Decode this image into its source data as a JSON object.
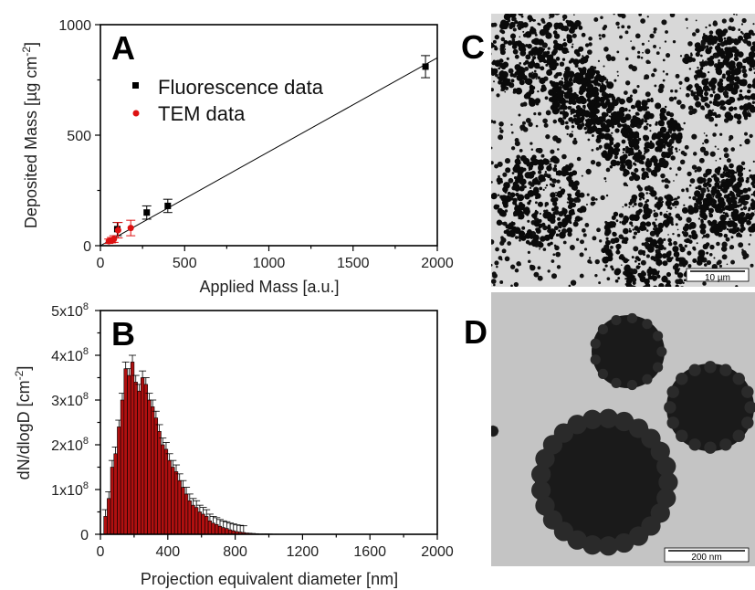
{
  "chart_data": [
    {
      "type": "scatter",
      "panel": "A",
      "xlabel": "Applied Mass [a.u.]",
      "ylabel": "Deposited Mass [µg cm",
      "ylabel_sup": "-2",
      "ylabel_end": "]",
      "xlim": [
        0,
        2000
      ],
      "ylim": [
        0,
        1000
      ],
      "xticks": [
        "0",
        "500",
        "1000",
        "1500",
        "2000"
      ],
      "yticks": [
        "0",
        "500",
        "1000"
      ],
      "legend": [
        "Fluorescence data",
        "TEM data"
      ],
      "colors": {
        "fluorescence": "#000000",
        "tem": "#dd1111"
      },
      "series": [
        {
          "name": "Fluorescence data",
          "marker": "square",
          "points": [
            {
              "x": 100,
              "y": 75,
              "err": 30
            },
            {
              "x": 275,
              "y": 150,
              "err": 30
            },
            {
              "x": 400,
              "y": 180,
              "err": 30
            },
            {
              "x": 1930,
              "y": 810,
              "err": 50
            }
          ]
        },
        {
          "name": "TEM data",
          "marker": "circle",
          "points": [
            {
              "x": 50,
              "y": 20,
              "err": 10
            },
            {
              "x": 65,
              "y": 25,
              "err": 12
            },
            {
              "x": 80,
              "y": 30,
              "err": 15
            },
            {
              "x": 105,
              "y": 70,
              "err": 35
            },
            {
              "x": 180,
              "y": 80,
              "err": 35
            }
          ]
        }
      ],
      "fit_line": {
        "x": [
          0,
          2000
        ],
        "y": [
          0,
          850
        ]
      }
    },
    {
      "type": "bar",
      "panel": "B",
      "xlabel": "Projection equivalent diameter [nm]",
      "ylabel": "dN/dlogD [cm",
      "ylabel_sup": "-2",
      "ylabel_end": "]",
      "xlim": [
        0,
        2000
      ],
      "ylim": [
        0,
        500000000.0
      ],
      "xticks": [
        "0",
        "400",
        "800",
        "1200",
        "1600",
        "2000"
      ],
      "yticks": [
        {
          "base": "0",
          "exp": ""
        },
        {
          "base": "1x10",
          "exp": "8"
        },
        {
          "base": "2x10",
          "exp": "8"
        },
        {
          "base": "3x10",
          "exp": "8"
        },
        {
          "base": "4x10",
          "exp": "8"
        },
        {
          "base": "5x10",
          "exp": "8"
        }
      ],
      "bar_color": "#b01010",
      "bin_width_nm": 20,
      "bin_start_nm": 20,
      "values": [
        40000000.0,
        80000000.0,
        150000000.0,
        180000000.0,
        240000000.0,
        300000000.0,
        370000000.0,
        355000000.0,
        385000000.0,
        340000000.0,
        320000000.0,
        350000000.0,
        335000000.0,
        300000000.0,
        285000000.0,
        260000000.0,
        230000000.0,
        200000000.0,
        190000000.0,
        165000000.0,
        150000000.0,
        140000000.0,
        120000000.0,
        105000000.0,
        90000000.0,
        75000000.0,
        65000000.0,
        60000000.0,
        50000000.0,
        45000000.0,
        40000000.0,
        30000000.0,
        25000000.0,
        22000000.0,
        18000000.0,
        15000000.0,
        13000000.0,
        10000000.0,
        8000000.0,
        6000000.0,
        5000000.0,
        4000000.0,
        3000000.0,
        2500000.0,
        2000000.0,
        1500000.0,
        1000000.0,
        1000000.0,
        1000000.0,
        800000.0,
        500000.0,
        500000.0,
        300000.0,
        300000.0,
        200000.0
      ],
      "error": 15000000.0
    }
  ],
  "panels": {
    "a": "A",
    "b": "B",
    "c": "C",
    "d": "D"
  },
  "images": {
    "c_scale": "10 µm",
    "d_scale": "200 nm"
  }
}
